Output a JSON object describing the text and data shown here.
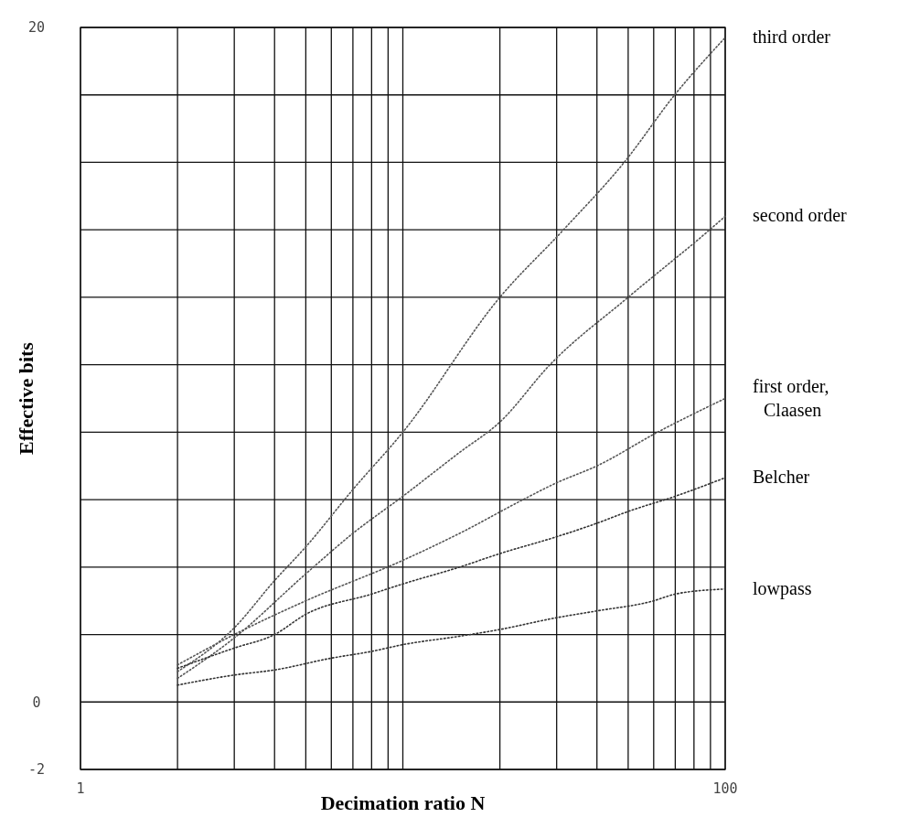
{
  "chart_data": {
    "type": "line",
    "xlabel": "Decimation ratio N",
    "ylabel": "Effective bits",
    "log": "x",
    "grid": true,
    "line_style": "dotted",
    "marker": "none",
    "xlim": [
      1,
      100
    ],
    "ylim": [
      -2,
      20
    ],
    "xticks": [
      1,
      {
        "value": 2,
        "label": null
      },
      {
        "value": 3,
        "label": null
      },
      {
        "value": 4,
        "label": null
      },
      {
        "value": 5,
        "label": null
      },
      {
        "value": 6,
        "label": null
      },
      {
        "value": 7,
        "label": null
      },
      {
        "value": 8,
        "label": null
      },
      {
        "value": 9,
        "label": null
      },
      {
        "value": 10,
        "label": null
      },
      {
        "value": 20,
        "label": null
      },
      {
        "value": 30,
        "label": null
      },
      {
        "value": 40,
        "label": null
      },
      {
        "value": 50,
        "label": null
      },
      {
        "value": 60,
        "label": null
      },
      {
        "value": 70,
        "label": null
      },
      {
        "value": 80,
        "label": null
      },
      {
        "value": 90,
        "label": null
      },
      100
    ],
    "yticks": [
      -2,
      0,
      {
        "value": 2,
        "label": null
      },
      {
        "value": 4,
        "label": null
      },
      {
        "value": 6,
        "label": null
      },
      {
        "value": 8,
        "label": null
      },
      {
        "value": 10,
        "label": null
      },
      {
        "value": 12,
        "label": null
      },
      {
        "value": 14,
        "label": null
      },
      {
        "value": 16,
        "label": null
      },
      {
        "value": 18,
        "label": null
      },
      20
    ],
    "series": [
      {
        "name": "third order",
        "color": "#555555",
        "x": [
          2,
          3,
          4,
          5,
          7,
          10,
          20,
          31.5,
          48.6,
          69.7,
          100
        ],
        "values": [
          0.9,
          2.2,
          3.6,
          4.6,
          6.3,
          8,
          12,
          14,
          16,
          18,
          19.7
        ]
      },
      {
        "name": "second order",
        "color": "#555555",
        "x": [
          2,
          3,
          5,
          7,
          10,
          15,
          20,
          28.6,
          50,
          89.5,
          100
        ],
        "values": [
          0.7,
          1.9,
          3.8,
          5,
          6.1,
          7.4,
          8.3,
          10,
          12,
          14,
          14.4
        ]
      },
      {
        "name": "first order, Claasen",
        "color": "#555555",
        "x": [
          2,
          3,
          5,
          10,
          15,
          23.6,
          30,
          40,
          61.7,
          100
        ],
        "values": [
          1.1,
          2,
          3,
          4.2,
          5,
          6,
          6.5,
          7,
          8,
          9
        ]
      },
      {
        "name": "Belcher",
        "color": "#333333",
        "x": [
          2,
          3,
          4,
          5,
          8,
          10,
          15,
          20,
          30,
          40,
          50,
          70,
          100
        ],
        "values": [
          1,
          1.6,
          2,
          2.6,
          3.2,
          3.5,
          4,
          4.4,
          4.9,
          5.3,
          5.65,
          6.1,
          6.65
        ]
      },
      {
        "name": "lowpass",
        "color": "#333333",
        "x": [
          2,
          3,
          4,
          6,
          8,
          10,
          15,
          20,
          30,
          40,
          60,
          70,
          100
        ],
        "values": [
          0.5,
          0.8,
          0.95,
          1.3,
          1.5,
          1.7,
          1.95,
          2.15,
          2.5,
          2.7,
          3,
          3.2,
          3.35
        ]
      }
    ]
  }
}
